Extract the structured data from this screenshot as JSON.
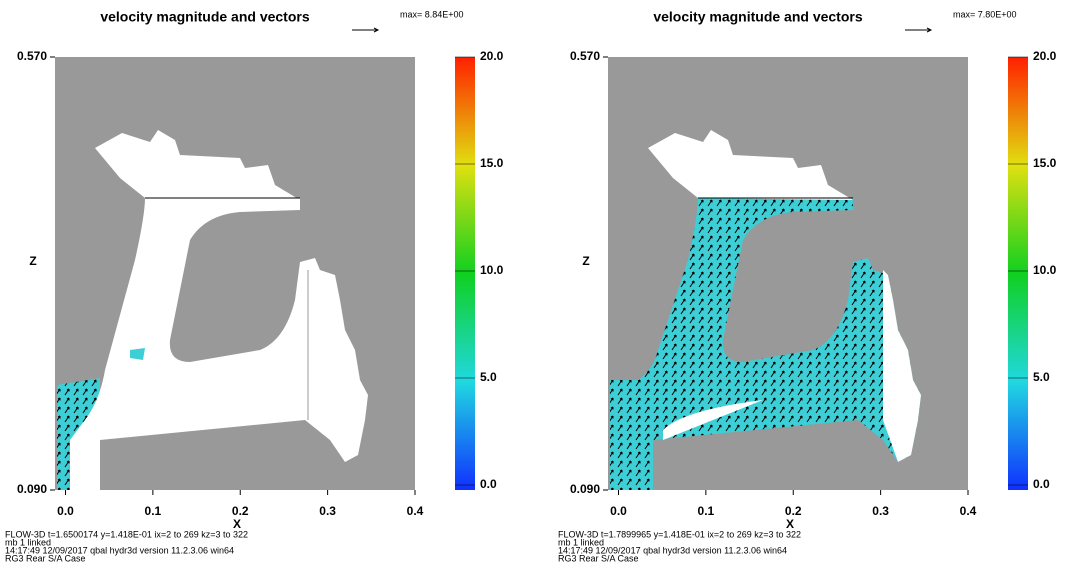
{
  "chart_data": [
    {
      "type": "contour",
      "title": "velocity magnitude and vectors",
      "max_label": "max= 8.84E+00",
      "x_label": "X",
      "y_label": "Z",
      "xlim": [
        -0.012,
        0.4
      ],
      "xticks": [
        {
          "value": 0,
          "label": "0.0"
        },
        0.1,
        0.2,
        0.3,
        0.4
      ],
      "ylim": [
        0.09,
        0.57
      ],
      "yticks": [
        {
          "value": 0.09,
          "label": "0.090"
        },
        {
          "value": 0.57,
          "label": "0.570"
        }
      ],
      "clim": [
        0,
        20
      ],
      "cticks": [
        {
          "value": 0,
          "label": "0.0"
        },
        {
          "value": 5,
          "label": "5.0"
        },
        {
          "value": 10,
          "label": "10.0"
        },
        {
          "value": 15,
          "label": "15.0"
        },
        {
          "value": 20,
          "label": "20.0"
        }
      ],
      "footer": [
        "FLOW-3D  t=1.6500174  y=1.418E-01  ix=2 to 269  kz=3 to 322",
        "mb  1          linked",
        "14:17:49  12/09/2017 qbal        hydr3d   version  11.2.3.06 win64",
        "RG3 Rear S/A Case"
      ]
    },
    {
      "type": "contour",
      "title": "velocity magnitude and vectors",
      "max_label": "max= 7.80E+00",
      "x_label": "X",
      "y_label": "Z",
      "xlim": [
        -0.012,
        0.4
      ],
      "xticks": [
        {
          "value": 0,
          "label": "0.0"
        },
        0.1,
        0.2,
        0.3,
        0.4
      ],
      "ylim": [
        0.09,
        0.57
      ],
      "yticks": [
        {
          "value": 0.09,
          "label": "0.090"
        },
        {
          "value": 0.57,
          "label": "0.570"
        }
      ],
      "clim": [
        0,
        20
      ],
      "cticks": [
        {
          "value": 0,
          "label": "0.0"
        },
        {
          "value": 5,
          "label": "5.0"
        },
        {
          "value": 10,
          "label": "10.0"
        },
        {
          "value": 15,
          "label": "15.0"
        },
        {
          "value": 20,
          "label": "20.0"
        }
      ],
      "footer": [
        "FLOW-3D  t=1.7899965  y=1.418E-01  ix=2 to 269  kz=3 to 322",
        "mb  1          linked",
        "14:17:49  12/09/2017 qbal        hydr3d   version  11.2.3.06 win64",
        "RG3 Rear S/A Case"
      ]
    }
  ]
}
